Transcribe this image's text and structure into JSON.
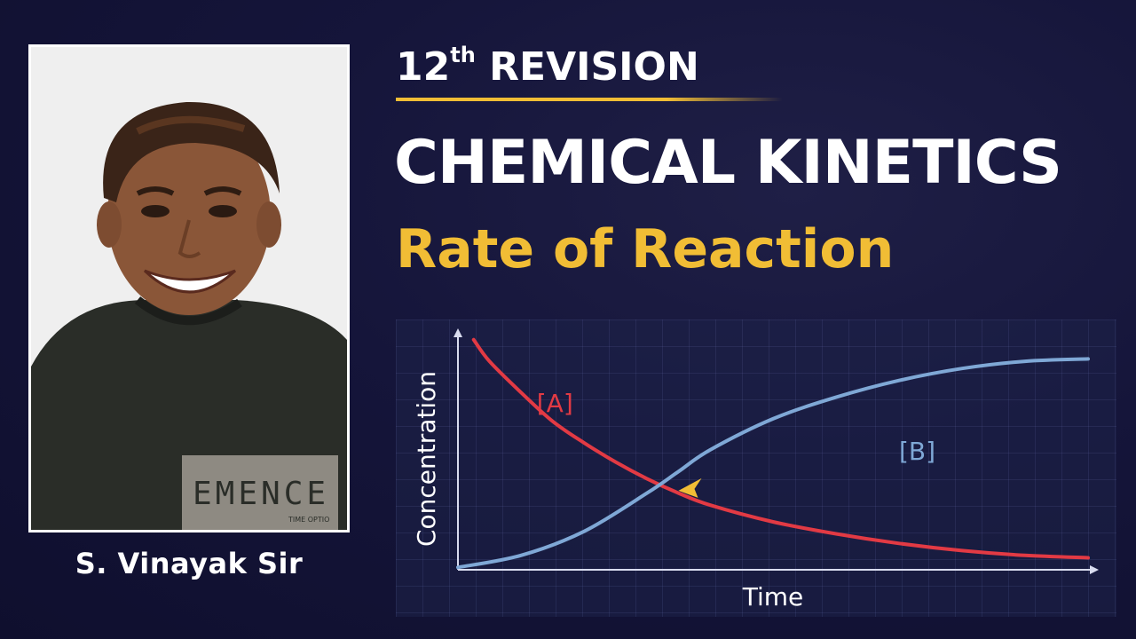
{
  "presenter": {
    "name": "S. Vinayak Sir",
    "shirt_print": "EMENCE",
    "shirt_small_text": "TIME OPTIO"
  },
  "header": {
    "revision_number": "12",
    "revision_suffix": "th",
    "revision_label": "REVISION"
  },
  "title": "CHEMICAL KINETICS",
  "subtitle": "Rate of Reaction",
  "colors": {
    "accent": "#f1bd35",
    "background": "#15153a",
    "reactant": "#e23a44",
    "product": "#7fa8d6"
  },
  "chart_data": {
    "type": "line",
    "xlabel": "Time",
    "ylabel": "Concentration",
    "xlim": [
      0,
      10
    ],
    "ylim": [
      0,
      10
    ],
    "grid": true,
    "series": [
      {
        "name": "[A]",
        "color": "#e23a44",
        "x": [
          0.25,
          0.5,
          1,
          1.5,
          2,
          2.5,
          3,
          3.5,
          4,
          5,
          6,
          7,
          8,
          9,
          10
        ],
        "y": [
          9.6,
          8.7,
          7.4,
          6.2,
          5.3,
          4.5,
          3.8,
          3.2,
          2.7,
          2.0,
          1.5,
          1.1,
          0.8,
          0.6,
          0.5
        ]
      },
      {
        "name": "[B]",
        "color": "#7fa8d6",
        "x": [
          0,
          1,
          2,
          3,
          3.5,
          4,
          5,
          6,
          7,
          8,
          9,
          10
        ],
        "y": [
          0.1,
          0.6,
          1.6,
          3.2,
          4.1,
          5.0,
          6.3,
          7.2,
          7.9,
          8.4,
          8.7,
          8.8
        ]
      }
    ],
    "annotations": [
      {
        "type": "arrow",
        "x": 3.5,
        "y": 3.3,
        "color": "#f1bd35"
      }
    ]
  }
}
